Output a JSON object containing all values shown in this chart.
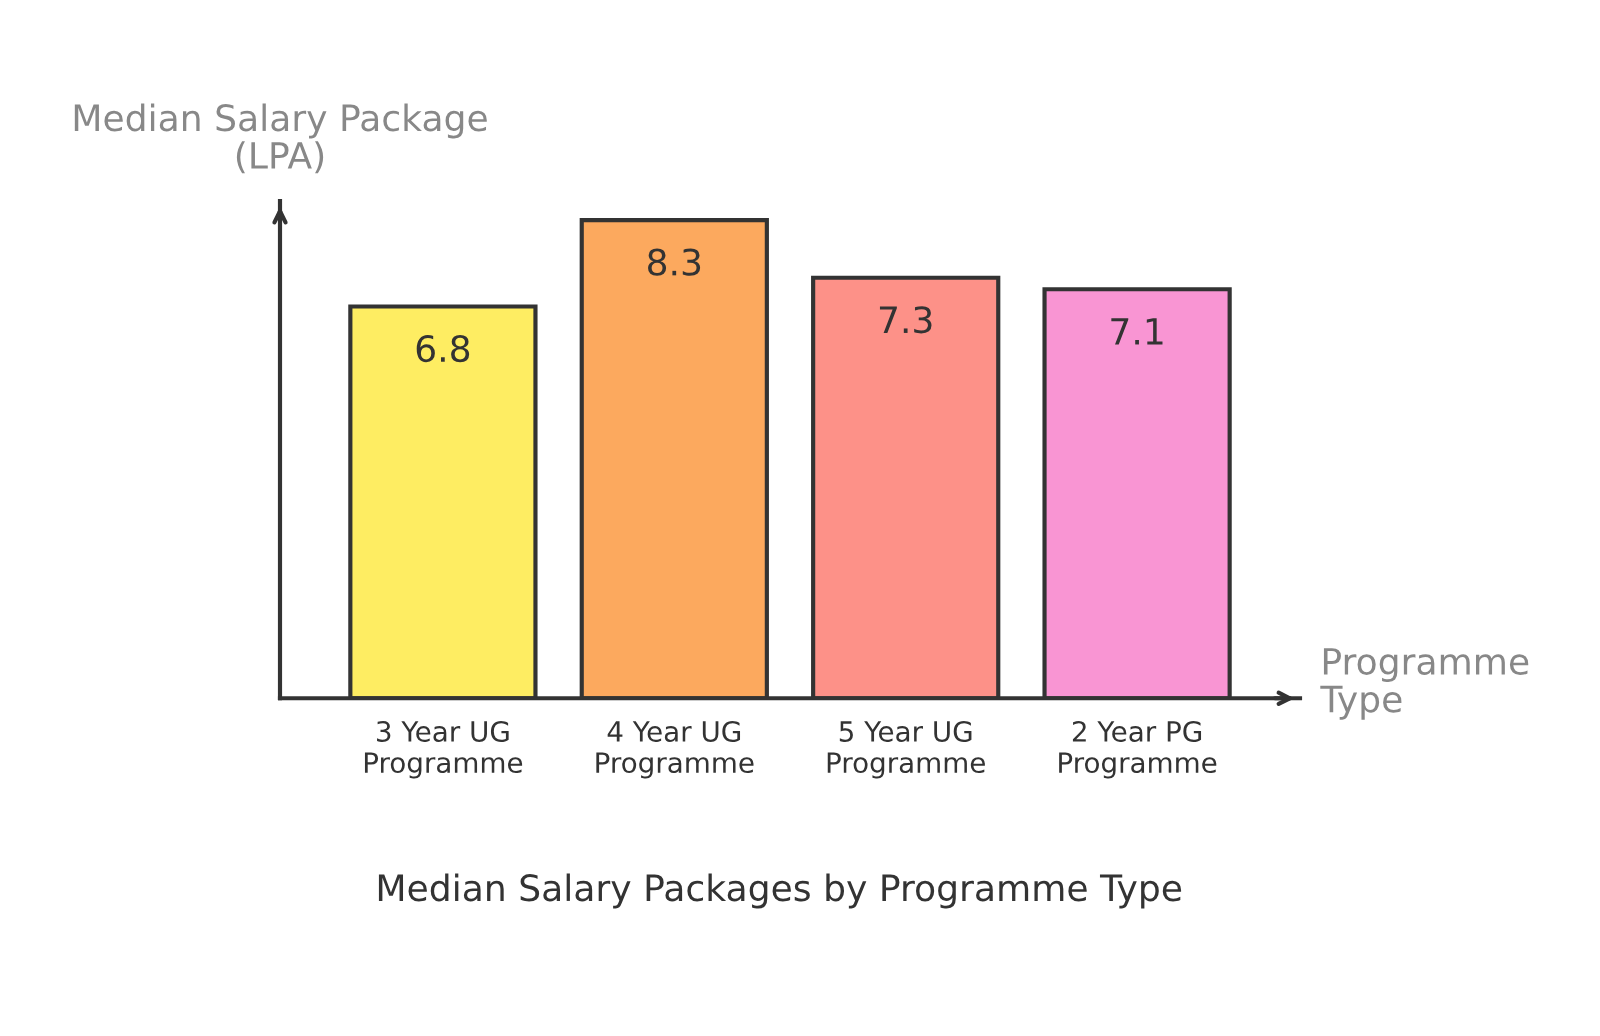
{
  "chart_data": {
    "type": "bar",
    "title": "Median Salary Packages by Programme Type",
    "xlabel": "Programme Type",
    "ylabel": "Median Salary Package (LPA)",
    "categories": [
      "3 Year UG Programme",
      "4 Year UG Programme",
      "5 Year UG Programme",
      "2 Year PG Programme"
    ],
    "values": [
      6.8,
      8.3,
      7.3,
      7.1
    ],
    "colors": [
      "#feed62",
      "#fca95e",
      "#fd9188",
      "#f995d3"
    ],
    "data_labels": true,
    "grid": false,
    "legend": false,
    "tick_labels": "x"
  }
}
